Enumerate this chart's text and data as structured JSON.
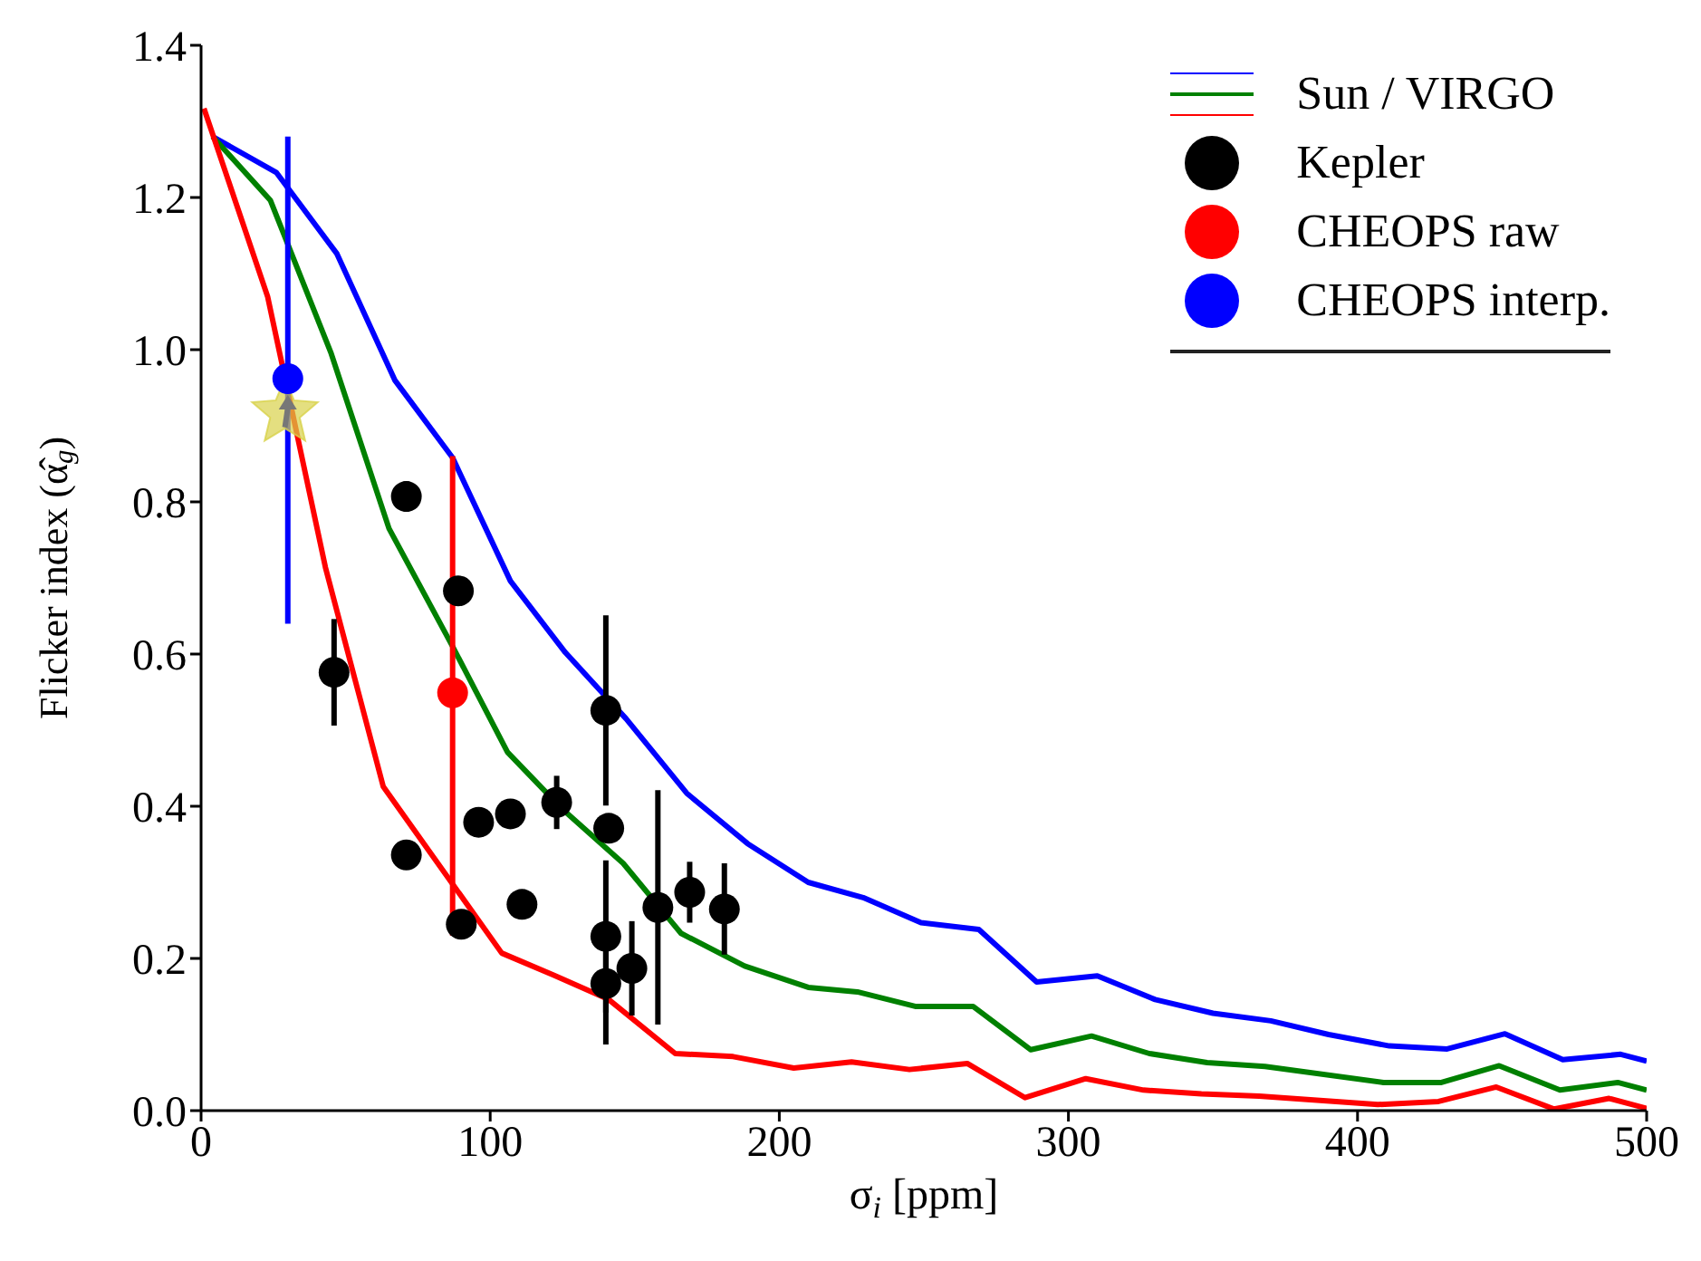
{
  "chart_data": {
    "type": "line",
    "xlabel": "σ$_{i}$ [ppm]",
    "ylabel": "Flicker index (α̂$_{g}$)",
    "xlim": [
      0,
      500
    ],
    "xticks": [
      0,
      100,
      200,
      300,
      400,
      500
    ],
    "ylim": [
      0,
      1.4
    ],
    "yticks": [
      {
        "value": 0,
        "label": "0.0"
      },
      {
        "value": 0.2,
        "label": "0.2"
      },
      {
        "value": 0.4,
        "label": "0.4"
      },
      {
        "value": 0.6,
        "label": "0.6"
      },
      {
        "value": 0.8,
        "label": "0.8"
      },
      {
        "value": 1.0,
        "label": "1.0"
      },
      {
        "value": 1.2,
        "label": "1.2"
      },
      {
        "value": 1.4,
        "label": "1.4"
      }
    ],
    "grid": false,
    "legend": "top right",
    "marker": "circle",
    "series": [
      {
        "name": "Sun / VIRGO",
        "marker": "none",
        "color": "#0000ff",
        "x": [
          4,
          26,
          47,
          67,
          87,
          107,
          126,
          147,
          168,
          189,
          210,
          229,
          249,
          269,
          289,
          310,
          330,
          350,
          370,
          390,
          411,
          431,
          451,
          471,
          491,
          500
        ],
        "values": [
          1.28,
          1.233,
          1.126,
          0.96,
          0.858,
          0.696,
          0.602,
          0.515,
          0.417,
          0.351,
          0.3,
          0.28,
          0.247,
          0.238,
          0.169,
          0.177,
          0.146,
          0.128,
          0.118,
          0.1,
          0.085,
          0.081,
          0.101,
          0.067,
          0.074,
          0.065
        ]
      },
      {
        "marker": "none",
        "color": "#008000",
        "x": [
          4,
          24,
          45,
          65,
          87,
          106,
          125,
          146,
          166,
          188,
          210,
          227,
          247,
          267,
          287,
          308,
          328,
          348,
          368,
          409,
          429,
          449,
          470,
          490,
          500
        ],
        "values": [
          1.28,
          1.196,
          0.995,
          0.765,
          0.61,
          0.471,
          0.396,
          0.325,
          0.233,
          0.19,
          0.162,
          0.156,
          0.137,
          0.137,
          0.08,
          0.098,
          0.075,
          0.063,
          0.058,
          0.037,
          0.037,
          0.059,
          0.027,
          0.037,
          0.027
        ]
      },
      {
        "marker": "none",
        "color": "#ff0000",
        "x": [
          1,
          23,
          43,
          63,
          104,
          122,
          141,
          164,
          184,
          205,
          225,
          245,
          265,
          285,
          306,
          326,
          346,
          366,
          407,
          428,
          448,
          468,
          487,
          500
        ],
        "values": [
          1.317,
          1.07,
          0.714,
          0.426,
          0.207,
          0.178,
          0.146,
          0.075,
          0.071,
          0.056,
          0.064,
          0.054,
          0.062,
          0.017,
          0.042,
          0.027,
          0.022,
          0.019,
          0.008,
          0.012,
          0.031,
          0.002,
          0.016,
          0.003
        ]
      },
      {
        "name": "Kepler",
        "type": "scatter",
        "color": "#000000",
        "x": [
          46,
          71,
          89,
          71,
          96,
          107,
          123,
          140,
          141,
          140,
          140,
          149,
          158,
          169,
          181,
          90,
          111
        ],
        "values": [
          0.576,
          0.807,
          0.683,
          0.336,
          0.379,
          0.39,
          0.405,
          0.526,
          0.371,
          0.229,
          0.167,
          0.187,
          0.267,
          0.287,
          0.265,
          0.245,
          0.271
        ],
        "errors": [
          0.07,
          0.02,
          null,
          null,
          null,
          null,
          0.035,
          0.125,
          null,
          0.1,
          0.08,
          0.062,
          0.154,
          0.04,
          0.06,
          null,
          null
        ]
      },
      {
        "type": "scatter",
        "marker": "star",
        "color": "#d8d24a",
        "x": [
          29
        ],
        "values": [
          0.917
        ]
      },
      {
        "name": "CHEOPS raw",
        "type": "scatter",
        "color": "#ff0000",
        "x": [
          87
        ],
        "values": [
          0.549
        ],
        "errors": [
          [
            0.23,
            0.86
          ]
        ]
      },
      {
        "name": "CHEOPS interp.",
        "type": "scatter",
        "color": "#0000ff",
        "x": [
          30
        ],
        "values": [
          0.962
        ],
        "errors": [
          [
            0.64,
            1.28
          ]
        ]
      }
    ]
  }
}
